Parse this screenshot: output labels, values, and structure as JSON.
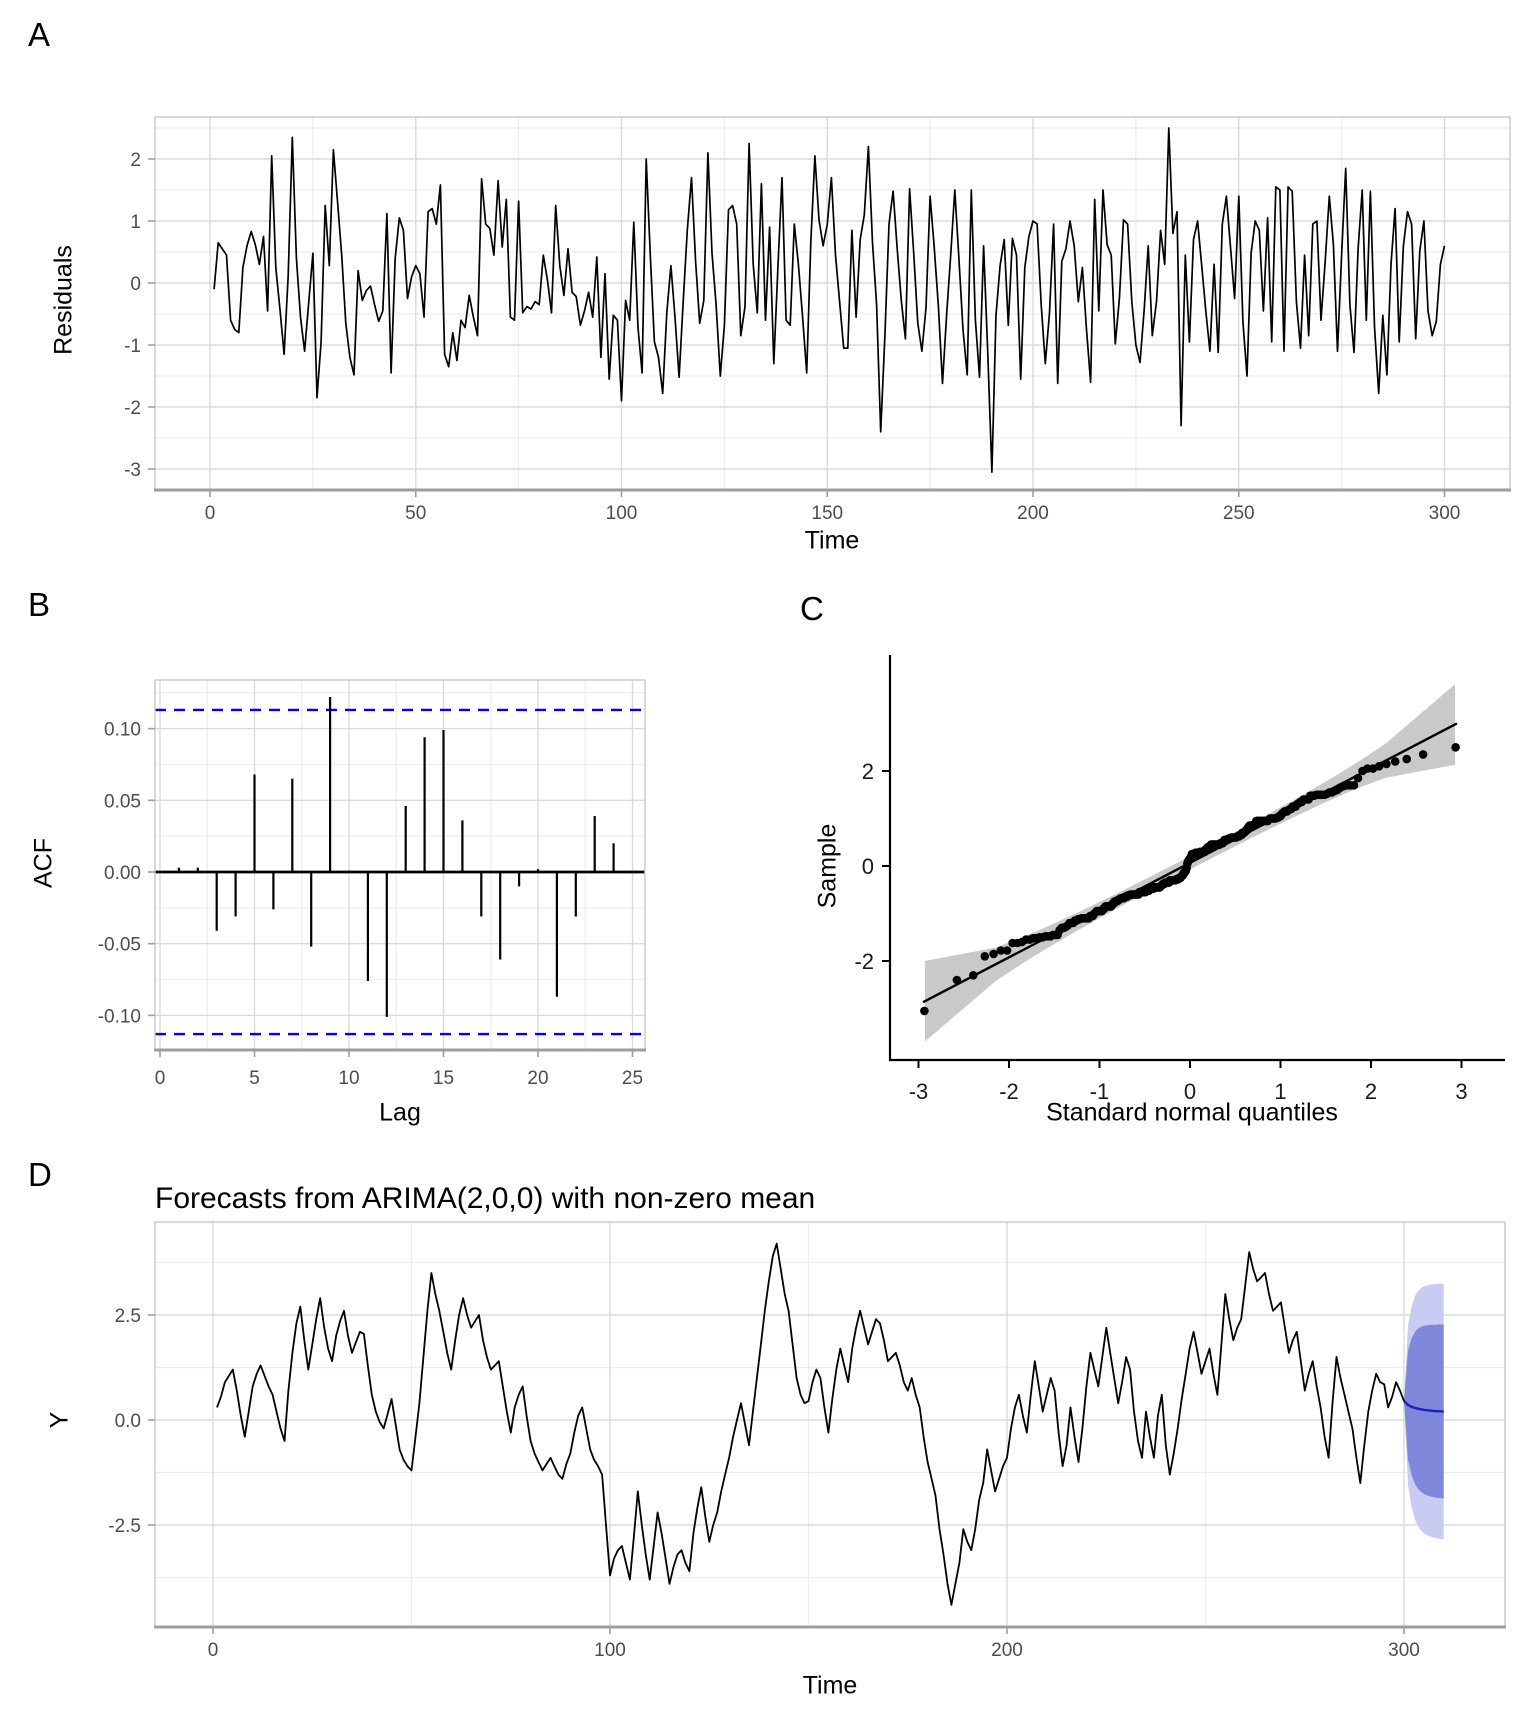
{
  "panels": {
    "a": {
      "letter": "A",
      "x_title": "Time",
      "y_title": "Residuals",
      "x_tick_labels": [
        "0",
        "50",
        "100",
        "150",
        "200",
        "250",
        "300"
      ],
      "y_tick_labels": [
        "2",
        "1",
        "0",
        "-1",
        "-2",
        "-3"
      ]
    },
    "b": {
      "letter": "B",
      "x_title": "Lag",
      "y_title": "ACF",
      "x_tick_labels": [
        "0",
        "5",
        "10",
        "15",
        "20",
        "25"
      ],
      "y_tick_labels": [
        "0.10",
        "0.05",
        "0.00",
        "-0.05",
        "-0.10"
      ]
    },
    "c": {
      "letter": "C",
      "x_title": "Standard normal quantiles",
      "y_title": "Sample",
      "x_tick_labels": [
        "-3",
        "-2",
        "-1",
        "0",
        "1",
        "2",
        "3"
      ],
      "y_tick_labels": [
        "2",
        "0",
        "-2"
      ]
    },
    "d": {
      "letter": "D",
      "title": "Forecasts from ARIMA(2,0,0) with non-zero mean",
      "x_title": "Time",
      "y_title": "Y",
      "x_tick_labels": [
        "0",
        "100",
        "200",
        "300"
      ],
      "y_tick_labels": [
        "2.5",
        "0.0",
        "-2.5"
      ]
    }
  },
  "colors": {
    "series_line": "#000000",
    "grid_major": "#DBDBDB",
    "grid_minor": "#EDEDED",
    "panel_border": "#C9C9C9",
    "axis_line_grey": "#9E9E9E",
    "tick_label": "#4D4D4D",
    "acf_conf_dashed": "#0000EE",
    "qq_band": "#C9C9C9",
    "qq_line": "#000000",
    "fan_95": "#C9CCF2",
    "fan_80": "#7F88DA",
    "forecast_line": "#1B1FC1"
  },
  "chart_data": [
    {
      "panel": "A",
      "type": "line",
      "title": "",
      "xlabel": "Time",
      "ylabel": "Residuals",
      "x_ticks": [
        0,
        50,
        100,
        150,
        200,
        250,
        300
      ],
      "y_ticks": [
        2,
        1,
        0,
        -1,
        -2,
        -3
      ],
      "xlim": [
        0,
        300
      ],
      "ylim": [
        -3.35,
        2.7
      ],
      "grid": true,
      "x_start": 1,
      "values": [
        -0.1,
        0.65,
        0.55,
        0.45,
        -0.6,
        -0.75,
        -0.8,
        0.25,
        0.6,
        0.83,
        0.62,
        0.3,
        0.75,
        -0.45,
        2.05,
        0.25,
        -0.43,
        -1.15,
        0.12,
        2.35,
        0.4,
        -0.55,
        -1.1,
        -0.3,
        0.48,
        -1.85,
        -0.95,
        1.25,
        0.28,
        2.15,
        1.3,
        0.45,
        -0.65,
        -1.2,
        -1.48,
        0.2,
        -0.28,
        -0.12,
        -0.05,
        -0.35,
        -0.62,
        -0.45,
        1.12,
        -1.45,
        0.4,
        1.05,
        0.85,
        -0.25,
        0.1,
        0.28,
        0.15,
        -0.55,
        1.15,
        1.2,
        0.95,
        1.58,
        -1.15,
        -1.35,
        -0.8,
        -1.25,
        -0.6,
        -0.72,
        -0.2,
        -0.55,
        -0.85,
        1.68,
        0.95,
        0.88,
        0.45,
        1.65,
        0.58,
        1.35,
        -0.55,
        -0.6,
        1.32,
        -0.48,
        -0.38,
        -0.42,
        -0.3,
        -0.35,
        0.45,
        0.05,
        -0.48,
        1.25,
        0.28,
        -0.2,
        0.55,
        -0.15,
        -0.22,
        -0.68,
        -0.45,
        -0.15,
        -0.55,
        0.42,
        -1.2,
        0.15,
        -1.55,
        -0.52,
        -0.6,
        -1.9,
        -0.28,
        -0.6,
        0.98,
        -0.72,
        -1.45,
        2.0,
        0.45,
        -0.95,
        -1.2,
        -1.78,
        -0.48,
        0.28,
        -0.55,
        -1.52,
        -0.3,
        0.85,
        1.7,
        0.35,
        -0.65,
        -0.28,
        2.1,
        0.48,
        -0.35,
        -1.5,
        -0.68,
        1.18,
        1.25,
        0.95,
        -0.85,
        -0.38,
        2.25,
        0.3,
        -0.48,
        1.6,
        -0.6,
        0.9,
        -1.3,
        0.25,
        1.7,
        -0.6,
        -0.68,
        0.95,
        0.3,
        -0.55,
        -1.45,
        0.65,
        2.05,
        1.02,
        0.6,
        0.95,
        1.7,
        0.45,
        -0.3,
        -1.05,
        -1.05,
        0.85,
        -0.55,
        0.7,
        1.1,
        2.2,
        0.65,
        -0.35,
        -2.4,
        -0.85,
        0.95,
        1.48,
        0.55,
        -0.28,
        -0.9,
        1.52,
        0.48,
        -0.65,
        -1.1,
        -0.4,
        1.4,
        0.58,
        -0.38,
        -1.62,
        -0.52,
        0.45,
        1.5,
        0.4,
        -0.75,
        -1.48,
        1.5,
        -0.6,
        -1.52,
        0.6,
        -1.1,
        -3.05,
        -0.52,
        0.28,
        0.7,
        -0.68,
        0.72,
        0.45,
        -1.55,
        0.25,
        0.75,
        1.0,
        0.95,
        -0.35,
        -1.3,
        -0.48,
        0.95,
        -1.62,
        0.35,
        0.55,
        1.0,
        0.6,
        -0.3,
        0.25,
        -0.75,
        -1.6,
        1.35,
        -0.45,
        1.5,
        0.62,
        0.45,
        -0.98,
        -0.25,
        1.02,
        0.95,
        -0.3,
        -1.0,
        -1.28,
        -0.45,
        0.6,
        -0.85,
        -0.3,
        0.85,
        0.3,
        2.5,
        0.8,
        1.15,
        -2.3,
        0.45,
        -0.95,
        0.7,
        1.0,
        0.28,
        -0.45,
        -1.1,
        0.3,
        -1.12,
        0.95,
        1.4,
        0.58,
        -0.25,
        1.4,
        -0.62,
        -1.5,
        0.48,
        1.0,
        0.85,
        -0.45,
        1.05,
        -0.95,
        1.55,
        1.5,
        -1.1,
        1.55,
        1.48,
        -0.3,
        -1.05,
        0.45,
        -0.85,
        0.95,
        1.0,
        -0.6,
        0.35,
        1.4,
        0.62,
        -1.1,
        0.45,
        1.85,
        -0.35,
        -1.12,
        0.55,
        1.5,
        -0.6,
        1.48,
        -0.7,
        -1.78,
        -0.52,
        -1.48,
        0.3,
        1.2,
        -0.95,
        0.6,
        1.15,
        0.95,
        -0.9,
        0.52,
        1.0,
        -0.45,
        -0.85,
        -0.62,
        0.3,
        0.6
      ]
    },
    {
      "panel": "B",
      "type": "bar",
      "title": "",
      "xlabel": "Lag",
      "ylabel": "ACF",
      "x_ticks": [
        0,
        5,
        10,
        15,
        20,
        25
      ],
      "y_ticks": [
        0.1,
        0.05,
        0.0,
        -0.05,
        -0.1
      ],
      "xlim": [
        0,
        25
      ],
      "ylim": [
        -0.125,
        0.134
      ],
      "conf_bound": 0.113,
      "lags": [
        1,
        2,
        3,
        4,
        5,
        6,
        7,
        8,
        9,
        10,
        11,
        12,
        13,
        14,
        15,
        16,
        17,
        18,
        19,
        20,
        21,
        22,
        23,
        24
      ],
      "values": [
        0.003,
        0.003,
        -0.041,
        -0.031,
        0.068,
        -0.026,
        0.065,
        -0.052,
        0.122,
        0.001,
        -0.076,
        -0.101,
        0.046,
        0.094,
        0.099,
        0.036,
        -0.031,
        -0.061,
        -0.01,
        0.002,
        -0.087,
        -0.031,
        0.039,
        0.02
      ]
    },
    {
      "panel": "C",
      "type": "scatter",
      "title": "",
      "xlabel": "Standard normal quantiles",
      "ylabel": "Sample",
      "x_ticks": [
        -3,
        -2,
        -1,
        0,
        1,
        2,
        3
      ],
      "y_ticks": [
        2,
        0,
        -2
      ],
      "xlim": [
        -3.2,
        3.2
      ],
      "ylim": [
        -3.6,
        3.3
      ],
      "points_source": "qq_of_panel_A_residuals",
      "n_points": 300,
      "reference_line": "sample_mean_plus_sd_times_quantile",
      "conf_band_level": 0.95
    },
    {
      "panel": "D",
      "type": "line",
      "title": "Forecasts from ARIMA(2,0,0) with non-zero mean",
      "xlabel": "Time",
      "ylabel": "Y",
      "x_ticks": [
        0,
        100,
        200,
        300
      ],
      "y_ticks": [
        2.5,
        0.0,
        -2.5
      ],
      "xlim": [
        0,
        310
      ],
      "ylim": [
        -4.9,
        4.7
      ],
      "x_start": 1,
      "values": [
        0.3,
        0.55,
        0.9,
        1.05,
        1.2,
        0.7,
        0.1,
        -0.4,
        0.2,
        0.8,
        1.1,
        1.3,
        1.05,
        0.8,
        0.6,
        0.2,
        -0.2,
        -0.5,
        0.7,
        1.6,
        2.3,
        2.7,
        1.9,
        1.2,
        1.8,
        2.4,
        2.9,
        2.2,
        1.7,
        1.4,
        2.0,
        2.35,
        2.6,
        2.0,
        1.6,
        1.85,
        2.1,
        2.05,
        1.3,
        0.6,
        0.2,
        -0.05,
        -0.2,
        0.15,
        0.5,
        -0.1,
        -0.7,
        -0.95,
        -1.1,
        -1.2,
        -0.4,
        0.4,
        1.5,
        2.6,
        3.5,
        3.0,
        2.6,
        2.1,
        1.6,
        1.2,
        1.9,
        2.5,
        2.9,
        2.5,
        2.2,
        2.35,
        2.5,
        1.9,
        1.5,
        1.2,
        1.3,
        1.4,
        0.8,
        0.2,
        -0.3,
        0.3,
        0.6,
        0.8,
        0.1,
        -0.5,
        -0.8,
        -1.0,
        -1.2,
        -1.05,
        -0.9,
        -1.1,
        -1.3,
        -1.4,
        -1.05,
        -0.8,
        -0.3,
        0.1,
        0.3,
        -0.2,
        -0.7,
        -0.95,
        -1.1,
        -1.3,
        -2.5,
        -3.7,
        -3.3,
        -3.1,
        -3.0,
        -3.4,
        -3.8,
        -2.8,
        -1.7,
        -2.5,
        -3.2,
        -3.8,
        -3.0,
        -2.2,
        -2.7,
        -3.3,
        -3.9,
        -3.5,
        -3.2,
        -3.1,
        -3.4,
        -3.6,
        -2.7,
        -2.1,
        -1.6,
        -2.3,
        -2.9,
        -2.5,
        -2.2,
        -1.7,
        -1.3,
        -0.9,
        -0.4,
        0.0,
        0.4,
        -0.1,
        -0.6,
        0.2,
        1.0,
        1.8,
        2.6,
        3.3,
        3.9,
        4.2,
        3.6,
        3.0,
        2.6,
        1.8,
        1.0,
        0.6,
        0.4,
        0.45,
        0.9,
        1.2,
        1.0,
        0.3,
        -0.3,
        0.5,
        1.2,
        1.7,
        1.3,
        0.9,
        1.7,
        2.2,
        2.6,
        2.2,
        1.8,
        2.1,
        2.4,
        2.3,
        1.9,
        1.4,
        1.5,
        1.6,
        1.3,
        0.9,
        0.7,
        1.0,
        0.6,
        0.3,
        -0.4,
        -1.0,
        -1.4,
        -1.8,
        -2.6,
        -3.2,
        -3.9,
        -4.4,
        -3.9,
        -3.4,
        -2.6,
        -2.9,
        -3.1,
        -2.6,
        -1.9,
        -1.5,
        -0.7,
        -1.2,
        -1.7,
        -1.4,
        -1.1,
        -0.9,
        -0.2,
        0.3,
        0.6,
        0.1,
        -0.3,
        0.6,
        1.4,
        0.8,
        0.2,
        0.6,
        1.0,
        0.7,
        -0.3,
        -1.1,
        -0.6,
        0.3,
        -0.4,
        -1.0,
        -0.2,
        0.8,
        1.6,
        1.2,
        0.8,
        1.5,
        2.2,
        1.6,
        1.0,
        0.4,
        0.9,
        1.5,
        1.2,
        0.2,
        -0.5,
        -0.9,
        0.2,
        -0.4,
        -0.9,
        0.1,
        0.6,
        -0.6,
        -1.3,
        -0.8,
        -0.2,
        0.5,
        1.1,
        1.7,
        2.1,
        1.6,
        1.1,
        1.4,
        1.7,
        1.1,
        0.6,
        1.8,
        3.0,
        2.4,
        1.9,
        2.2,
        2.4,
        3.2,
        4.0,
        3.6,
        3.3,
        3.4,
        3.5,
        3.0,
        2.6,
        2.7,
        2.8,
        2.2,
        1.6,
        1.9,
        2.1,
        1.4,
        0.7,
        1.1,
        1.4,
        0.8,
        0.3,
        -0.4,
        -0.9,
        0.4,
        1.5,
        1.0,
        0.6,
        0.2,
        -0.2,
        -0.9,
        -1.5,
        -0.6,
        0.2,
        0.7,
        1.1,
        0.9,
        0.85,
        0.3,
        0.55,
        0.9,
        0.7,
        0.45
      ],
      "forecast": {
        "start": 301,
        "mean": [
          0.36,
          0.31,
          0.28,
          0.26,
          0.24,
          0.23,
          0.22,
          0.21,
          0.21,
          0.2
        ],
        "hw80": [
          1.3,
          1.65,
          1.85,
          1.95,
          2.0,
          2.03,
          2.05,
          2.06,
          2.07,
          2.07
        ],
        "hw95": [
          1.9,
          2.42,
          2.71,
          2.86,
          2.94,
          2.98,
          3.01,
          3.02,
          3.04,
          3.04
        ]
      }
    }
  ]
}
